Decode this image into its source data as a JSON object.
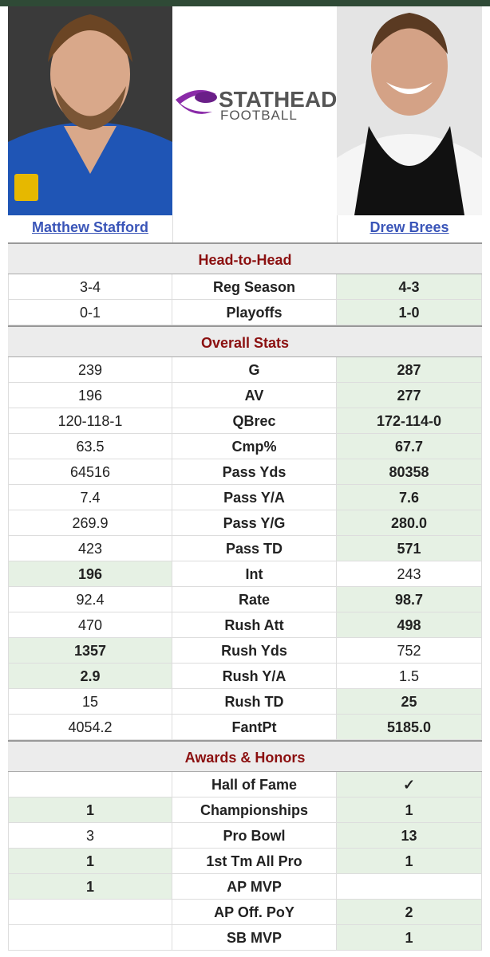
{
  "logo": {
    "brand": "STATHEAD",
    "sub": "FOOTBALL"
  },
  "players": {
    "p1": "Matthew Stafford",
    "p2": "Drew Brees"
  },
  "sections": [
    {
      "title": "Head-to-Head",
      "rows": [
        {
          "label": "Reg Season",
          "p1": "3-4",
          "p2": "4-3",
          "best": "p2"
        },
        {
          "label": "Playoffs",
          "p1": "0-1",
          "p2": "1-0",
          "best": "p2"
        }
      ]
    },
    {
      "title": "Overall Stats",
      "rows": [
        {
          "label": "G",
          "p1": "239",
          "p2": "287",
          "best": "p2"
        },
        {
          "label": "AV",
          "p1": "196",
          "p2": "277",
          "best": "p2"
        },
        {
          "label": "QBrec",
          "p1": "120-118-1",
          "p2": "172-114-0",
          "best": "p2"
        },
        {
          "label": "Cmp%",
          "p1": "63.5",
          "p2": "67.7",
          "best": "p2"
        },
        {
          "label": "Pass Yds",
          "p1": "64516",
          "p2": "80358",
          "best": "p2"
        },
        {
          "label": "Pass Y/A",
          "p1": "7.4",
          "p2": "7.6",
          "best": "p2"
        },
        {
          "label": "Pass Y/G",
          "p1": "269.9",
          "p2": "280.0",
          "best": "p2"
        },
        {
          "label": "Pass TD",
          "p1": "423",
          "p2": "571",
          "best": "p2"
        },
        {
          "label": "Int",
          "p1": "196",
          "p2": "243",
          "best": "p1"
        },
        {
          "label": "Rate",
          "p1": "92.4",
          "p2": "98.7",
          "best": "p2"
        },
        {
          "label": "Rush Att",
          "p1": "470",
          "p2": "498",
          "best": "p2"
        },
        {
          "label": "Rush Yds",
          "p1": "1357",
          "p2": "752",
          "best": "p1"
        },
        {
          "label": "Rush Y/A",
          "p1": "2.9",
          "p2": "1.5",
          "best": "p1"
        },
        {
          "label": "Rush TD",
          "p1": "15",
          "p2": "25",
          "best": "p2"
        },
        {
          "label": "FantPt",
          "p1": "4054.2",
          "p2": "5185.0",
          "best": "p2"
        }
      ]
    },
    {
      "title": "Awards & Honors",
      "rows": [
        {
          "label": "Hall of Fame",
          "p2": "✓",
          "best": "p2"
        },
        {
          "label": "Championships",
          "p1": "1",
          "p2": "1",
          "best": "both"
        },
        {
          "label": "Pro Bowl",
          "p1": "3",
          "p2": "13",
          "best": "p2"
        },
        {
          "label": "1st Tm All Pro",
          "p1": "1",
          "p2": "1",
          "best": "both"
        },
        {
          "label": "AP MVP",
          "p1": "1",
          "best": "p1"
        },
        {
          "label": "AP Off. PoY",
          "p2": "2",
          "best": "p2"
        },
        {
          "label": "SB MVP",
          "p2": "1",
          "best": "p2"
        }
      ]
    }
  ]
}
